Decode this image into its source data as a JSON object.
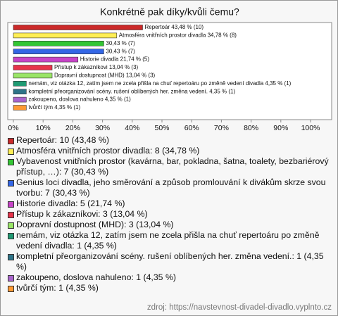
{
  "chart_data": {
    "type": "bar",
    "orientation": "horizontal",
    "title": "Konkrétně pak díky/kvůli čemu?",
    "categories": [
      "Repertoár",
      "Atmosféra vnitřních prostor divadla",
      "Vybavenost vnitřních prostor",
      "Genius loci divadla",
      "Historie divadla",
      "Přístup k zákazníkovi",
      "Dopravní dostupnost (MHD)",
      "nemám, viz otázka 12, zatím jsem ne zcela přišla na chuť repertoáru po změně vedení divadla",
      "kompletní přeorganizování scény. rušení oblíbených her. změna vedení.",
      "zakoupeno, doslova nahuleno",
      "tvůrčí tým"
    ],
    "values": [
      43.48,
      34.78,
      30.43,
      30.43,
      21.74,
      13.04,
      13.04,
      4.35,
      4.35,
      4.35,
      4.35
    ],
    "value_labels": [
      "Repertoár 43,48 % (10)",
      "Atmosféra vnitřních prostor divadla 34,78 % (8)",
      "30,43 % (7)",
      "30,43 % (7)",
      "Historie divadla 21,74 % (5)",
      "Přístup k zákazníkovi 13,04 % (3)",
      "Dopravní dostupnost (MHD) 13,04 % (3)",
      "nemám, viz otázka 12, zatím jsem ne zcela přišla na chuť repertoáru po změně vedení divadla 4,35 % (1)",
      "kompletní přeorganizování scény. rušení oblíbených her. změna vedení. 4,35 % (1)",
      "zakoupeno, doslova nahuleno 4,35 % (1)",
      "tvůrčí tým 4,35 % (1)"
    ],
    "colors": [
      "#cc2a2a",
      "#ffee55",
      "#33c633",
      "#3366e6",
      "#c643c6",
      "#e8334a",
      "#99e566",
      "#1f9a72",
      "#2e7488",
      "#a865cc",
      "#ff9a33"
    ],
    "legend": [
      "Repertoár: 10 (43,48 %)",
      "Atmosféra vnitřních prostor divadla: 8 (34,78 %)",
      "Vybavenost vnitřních prostor (kavárna, bar, pokladna, šatna, toalety, bezbariérový přístup, …): 7 (30,43 %)",
      "Genius loci divadla, jeho směrování a způsob promlouvání k divákům skrze svou tvorbu: 7 (30,43 %)",
      "Historie divadla: 5 (21,74 %)",
      "Přístup k zákazníkovi: 3 (13,04 %)",
      "Dopravní dostupnost (MHD): 3 (13,04 %)",
      "nemám, viz otázka 12, zatím jsem ne zcela přišla na chuť repertoáru po změně vedení divadla: 1 (4,35 %)",
      "kompletní přeorganizování scény. rušení oblíbených her. změna vedení.: 1 (4,35 %)",
      "zakoupeno, doslova nahuleno: 1 (4,35 %)",
      "tvůrčí tým: 1 (4,35 %)"
    ],
    "xlim": [
      0,
      100
    ],
    "xticks": [
      {
        "value": 0,
        "label": "0%"
      },
      {
        "value": 10,
        "label": "10%"
      },
      {
        "value": 20,
        "label": "20%"
      },
      {
        "value": 30,
        "label": "30%"
      },
      {
        "value": 40,
        "label": "40%"
      },
      {
        "value": 50,
        "label": "50%"
      },
      {
        "value": 60,
        "label": "60%"
      },
      {
        "value": 70,
        "label": "70%"
      },
      {
        "value": 80,
        "label": "80%"
      },
      {
        "value": 90,
        "label": "90%"
      },
      {
        "value": 100,
        "label": "100%"
      }
    ],
    "source": "zdroj: https://navstevnost-divadel-divadlo.vyplnto.cz"
  }
}
